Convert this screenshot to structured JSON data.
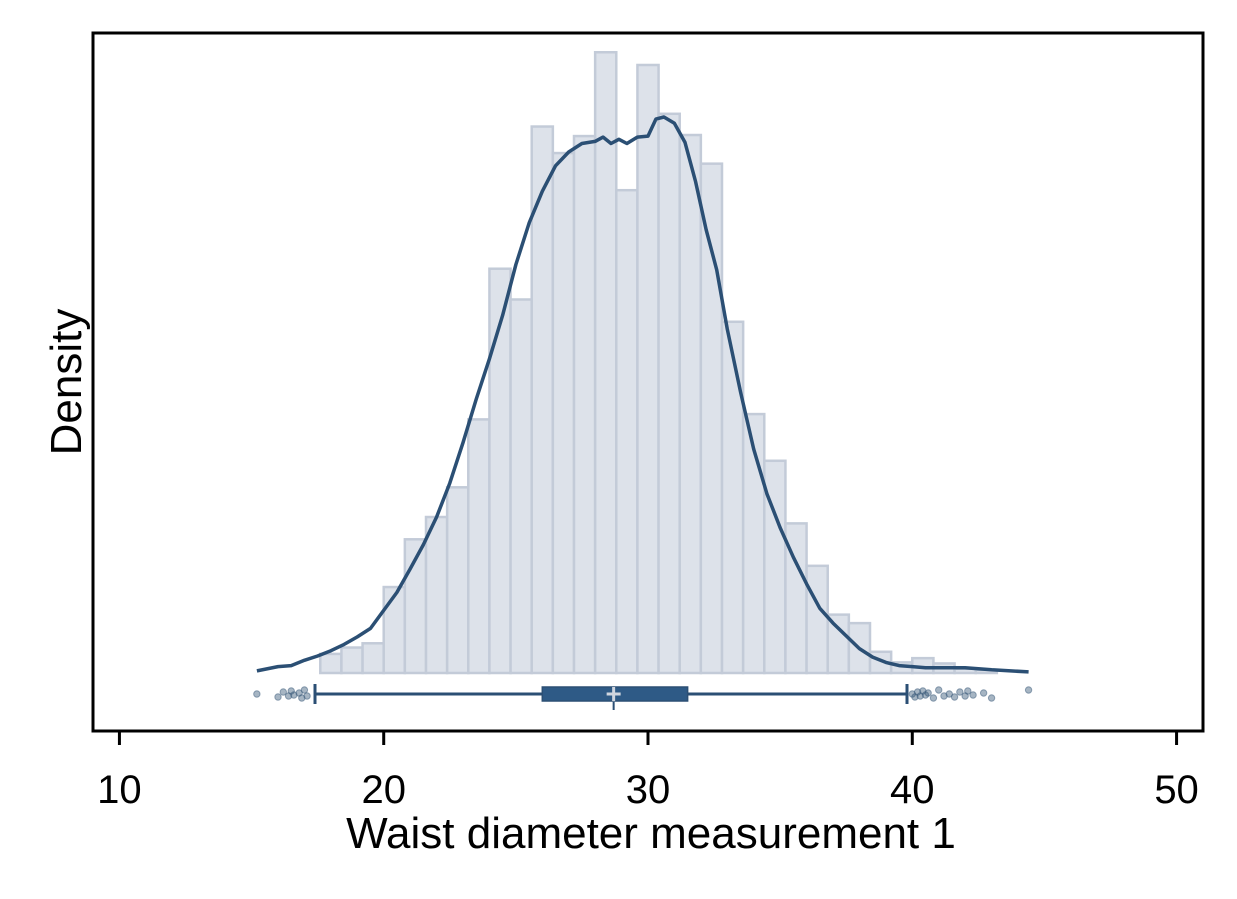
{
  "chart_data": {
    "type": "histogram",
    "title": "",
    "xlabel": "Waist diameter measurement 1",
    "ylabel": "Density",
    "xlim": [
      9,
      51
    ],
    "x_ticks": [
      10,
      20,
      30,
      40,
      50
    ],
    "y_ticks_shown": false,
    "grid": false,
    "legend": "none",
    "colors": {
      "bar_fill": "#dde2ea",
      "bar_edge": "#c3cbd8",
      "line": "#2b4f74",
      "box_fill": "#2e5a86",
      "outlier": "#3a5a7a",
      "median_marker": "#d0d6df"
    },
    "histogram": {
      "bin_width": 0.8,
      "bins": [
        {
          "start": 17.6,
          "end": 18.4,
          "height": 0.009
        },
        {
          "start": 18.4,
          "end": 19.2,
          "height": 0.012
        },
        {
          "start": 19.2,
          "end": 20.0,
          "height": 0.014
        },
        {
          "start": 20.0,
          "end": 20.8,
          "height": 0.0405
        },
        {
          "start": 20.8,
          "end": 21.6,
          "height": 0.063
        },
        {
          "start": 21.6,
          "end": 22.4,
          "height": 0.0735
        },
        {
          "start": 22.4,
          "end": 23.2,
          "height": 0.0875
        },
        {
          "start": 23.2,
          "end": 24.0,
          "height": 0.1195
        },
        {
          "start": 24.0,
          "end": 24.8,
          "height": 0.1905
        },
        {
          "start": 24.8,
          "end": 25.6,
          "height": 0.176
        },
        {
          "start": 25.6,
          "end": 26.4,
          "height": 0.2575
        },
        {
          "start": 26.4,
          "end": 27.2,
          "height": 0.245
        },
        {
          "start": 27.2,
          "end": 28.0,
          "height": 0.253
        },
        {
          "start": 28.0,
          "end": 28.8,
          "height": 0.2925
        },
        {
          "start": 28.8,
          "end": 29.6,
          "height": 0.2275
        },
        {
          "start": 29.6,
          "end": 30.4,
          "height": 0.2865
        },
        {
          "start": 30.4,
          "end": 31.2,
          "height": 0.2635
        },
        {
          "start": 31.2,
          "end": 32.0,
          "height": 0.2535
        },
        {
          "start": 32.0,
          "end": 32.8,
          "height": 0.24
        },
        {
          "start": 32.8,
          "end": 33.6,
          "height": 0.1655
        },
        {
          "start": 33.6,
          "end": 34.4,
          "height": 0.122
        },
        {
          "start": 34.4,
          "end": 35.2,
          "height": 0.1
        },
        {
          "start": 35.2,
          "end": 36.0,
          "height": 0.0705
        },
        {
          "start": 36.0,
          "end": 36.8,
          "height": 0.0505
        },
        {
          "start": 36.8,
          "end": 37.6,
          "height": 0.0275
        },
        {
          "start": 37.6,
          "end": 38.4,
          "height": 0.0235
        },
        {
          "start": 38.4,
          "end": 39.2,
          "height": 0.01
        },
        {
          "start": 39.2,
          "end": 40.0,
          "height": 0.005
        },
        {
          "start": 40.0,
          "end": 40.8,
          "height": 0.007
        },
        {
          "start": 40.8,
          "end": 41.6,
          "height": 0.0045
        },
        {
          "start": 41.6,
          "end": 42.4,
          "height": 0.002
        },
        {
          "start": 42.4,
          "end": 43.2,
          "height": 0.0015
        }
      ]
    },
    "density_curve": [
      [
        15.2,
        0.001
      ],
      [
        16.0,
        0.003
      ],
      [
        16.5,
        0.0035
      ],
      [
        17.0,
        0.006
      ],
      [
        17.5,
        0.008
      ],
      [
        18.0,
        0.0105
      ],
      [
        18.5,
        0.0135
      ],
      [
        19.0,
        0.017
      ],
      [
        19.5,
        0.021
      ],
      [
        20.0,
        0.0295
      ],
      [
        20.5,
        0.038
      ],
      [
        21.0,
        0.049
      ],
      [
        21.5,
        0.0605
      ],
      [
        22.0,
        0.0735
      ],
      [
        22.5,
        0.0895
      ],
      [
        23.0,
        0.1085
      ],
      [
        23.5,
        0.129
      ],
      [
        24.0,
        0.148
      ],
      [
        24.5,
        0.1685
      ],
      [
        25.0,
        0.1925
      ],
      [
        25.5,
        0.212
      ],
      [
        26.0,
        0.227
      ],
      [
        26.5,
        0.239
      ],
      [
        27.0,
        0.2455
      ],
      [
        27.5,
        0.2495
      ],
      [
        28.0,
        0.2505
      ],
      [
        28.3,
        0.2525
      ],
      [
        28.6,
        0.2495
      ],
      [
        28.9,
        0.2515
      ],
      [
        29.2,
        0.2495
      ],
      [
        29.6,
        0.2525
      ],
      [
        30.0,
        0.253
      ],
      [
        30.3,
        0.261
      ],
      [
        30.6,
        0.262
      ],
      [
        31.0,
        0.259
      ],
      [
        31.4,
        0.25
      ],
      [
        31.8,
        0.2315
      ],
      [
        32.2,
        0.209
      ],
      [
        32.6,
        0.19
      ],
      [
        33.0,
        0.162
      ],
      [
        33.5,
        0.1325
      ],
      [
        34.0,
        0.1055
      ],
      [
        34.5,
        0.0845
      ],
      [
        35.0,
        0.0685
      ],
      [
        35.5,
        0.0545
      ],
      [
        36.0,
        0.042
      ],
      [
        36.5,
        0.0305
      ],
      [
        37.0,
        0.0235
      ],
      [
        37.5,
        0.0175
      ],
      [
        38.0,
        0.0115
      ],
      [
        38.5,
        0.0075
      ],
      [
        39.0,
        0.005
      ],
      [
        39.5,
        0.0035
      ],
      [
        40.0,
        0.003
      ],
      [
        40.5,
        0.0025
      ],
      [
        41.0,
        0.0025
      ],
      [
        42.0,
        0.0025
      ],
      [
        43.0,
        0.0015
      ],
      [
        44.4,
        0.0005
      ]
    ],
    "boxplot": {
      "whisker_low": 17.4,
      "q1": 26.0,
      "median": 28.7,
      "q3": 31.5,
      "whisker_high": 39.8,
      "outliers": [
        15.2,
        16.0,
        16.2,
        16.4,
        16.5,
        16.6,
        16.8,
        16.9,
        17.0,
        17.1,
        40.0,
        40.1,
        40.2,
        40.3,
        40.4,
        40.5,
        40.6,
        40.8,
        41.0,
        41.2,
        41.4,
        41.6,
        41.8,
        42.0,
        42.1,
        42.3,
        42.7,
        43.0,
        44.4
      ]
    }
  }
}
